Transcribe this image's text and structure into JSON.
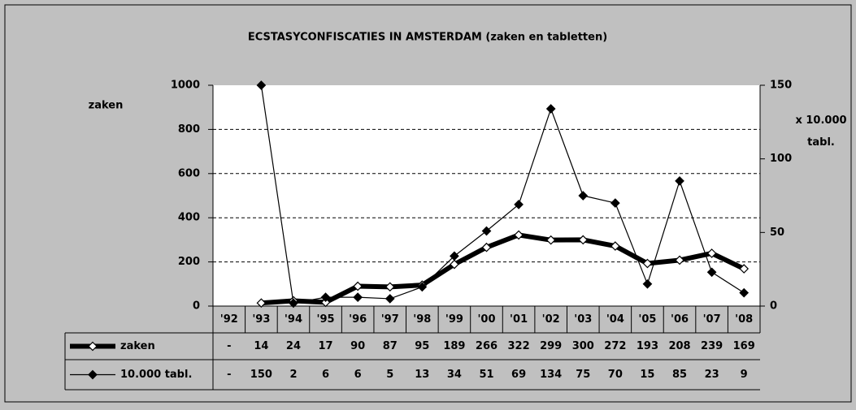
{
  "chart_data": {
    "type": "line",
    "title": "ECSTASYCONFISCATIES IN AMSTERDAM (zaken en tabletten)",
    "y_label": "zaken",
    "y2_label": "x 10.000 tabl.",
    "categories": [
      "'92",
      "'93",
      "'94",
      "'95",
      "'96",
      "'97",
      "'98",
      "'99",
      "'00",
      "'01",
      "'02",
      "'03",
      "'04",
      "'05",
      "'06",
      "'07",
      "'08"
    ],
    "series": [
      {
        "name": "zaken",
        "color": "#000000",
        "marker_fill": "#ffffff",
        "width": 6,
        "values": [
          null,
          14,
          24,
          17,
          90,
          87,
          95,
          189,
          266,
          322,
          299,
          300,
          272,
          193,
          208,
          239,
          169
        ],
        "value_labels": [
          "-",
          "14",
          "24",
          "17",
          "90",
          "87",
          "95",
          "189",
          "266",
          "322",
          "299",
          "300",
          "272",
          "193",
          "208",
          "239",
          "169"
        ]
      },
      {
        "name": "10.000 tabl.",
        "color": "#000000",
        "marker_fill": "#000000",
        "width": 1.2,
        "axis": "y2",
        "values": [
          null,
          150,
          2,
          6,
          6,
          5,
          13,
          34,
          51,
          69,
          134,
          75,
          70,
          15,
          85,
          23,
          9
        ],
        "value_labels": [
          "-",
          "150",
          "2",
          "6",
          "6",
          "5",
          "13",
          "34",
          "51",
          "69",
          "134",
          "75",
          "70",
          "15",
          "85",
          "23",
          "9"
        ]
      }
    ],
    "ylim": [
      0,
      1000
    ],
    "yticks": [
      0,
      200,
      400,
      600,
      800,
      1000
    ],
    "y2lim": [
      0,
      150
    ],
    "y2ticks": [
      0,
      50,
      100,
      150
    ],
    "grid": true
  }
}
